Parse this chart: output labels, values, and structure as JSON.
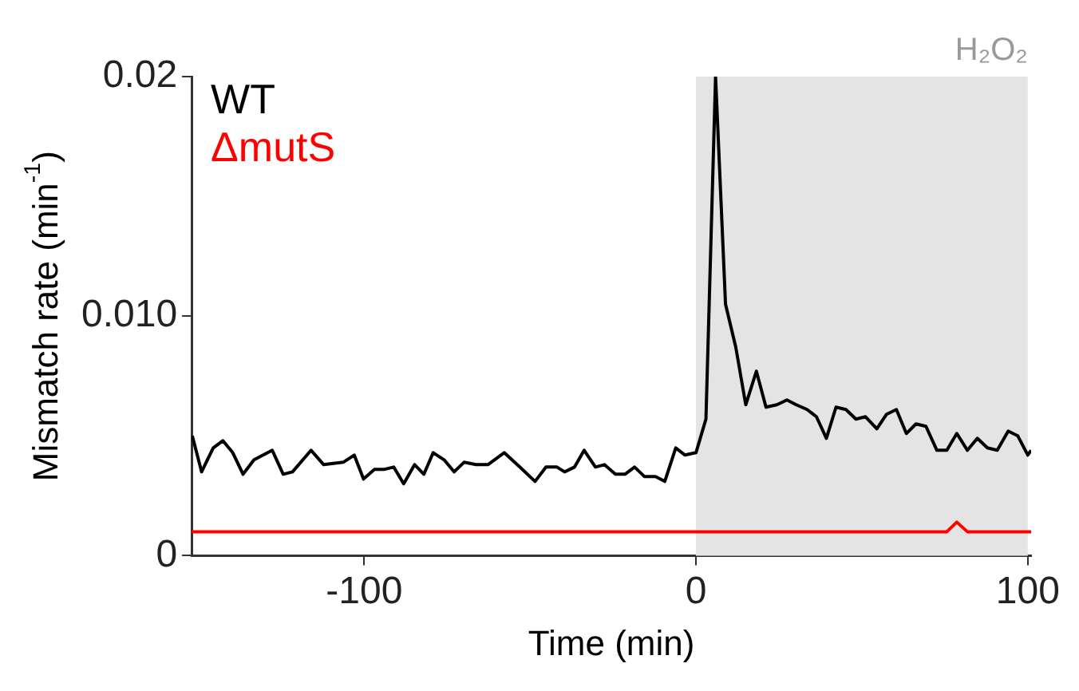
{
  "chart_data": {
    "type": "line",
    "xlabel": "Time (min)",
    "ylabel": "Mismatch rate (min$^{-1}$)",
    "xlim": [
      -152,
      101
    ],
    "xticks": [
      -100,
      0,
      100
    ],
    "ylim": [
      0,
      0.02
    ],
    "yticks": [
      {
        "value": 0,
        "label": "0"
      },
      {
        "value": 0.01,
        "label": "0.010"
      },
      {
        "value": 0.02,
        "label": "0.02"
      }
    ],
    "grid": false,
    "legend": "top left",
    "marker": "none",
    "line_style": "solid",
    "bands": [
      {
        "axis": "x",
        "from": 0,
        "to": 100,
        "label": "H₂O₂",
        "color": "#e4e4e4"
      }
    ],
    "series": [
      {
        "name": "WT",
        "color": "#000000",
        "x": [
          -151.8,
          -149,
          -145.5,
          -142.6,
          -139.6,
          -136.5,
          -133.2,
          -127.7,
          -124.4,
          -121.6,
          -116,
          -112.2,
          -106.3,
          -103,
          -100.2,
          -96.9,
          -94.1,
          -91.1,
          -88.1,
          -84.8,
          -82,
          -79.2,
          -75.9,
          -72.9,
          -69.9,
          -66.3,
          -62.7,
          -57.8,
          -53.1,
          -48.5,
          -45.2,
          -41.9,
          -39.6,
          -36.6,
          -33.7,
          -30.3,
          -27.6,
          -24.3,
          -21.4,
          -18.5,
          -15.5,
          -12.2,
          -9.4,
          -6.1,
          -3.3,
          0,
          3,
          5.9,
          8.9,
          12,
          15,
          18.2,
          21.1,
          24.4,
          27.4,
          30.2,
          33.5,
          36.3,
          39.3,
          42.2,
          45.2,
          48.2,
          51.1,
          54.5,
          57.4,
          60.4,
          63.4,
          66.3,
          69.3,
          72.6,
          75.6,
          78.6,
          81.8,
          84.8,
          87.8,
          90.8,
          94.1,
          97,
          100,
          101
        ],
        "values": [
          0.005,
          0.0035,
          0.0045,
          0.0048,
          0.0043,
          0.0034,
          0.004,
          0.0044,
          0.0034,
          0.0035,
          0.0044,
          0.0038,
          0.0039,
          0.0042,
          0.0032,
          0.0036,
          0.0036,
          0.0037,
          0.003,
          0.0038,
          0.0034,
          0.0043,
          0.004,
          0.0035,
          0.0039,
          0.0038,
          0.0038,
          0.0043,
          0.0037,
          0.0031,
          0.0037,
          0.0037,
          0.0035,
          0.0037,
          0.0044,
          0.0037,
          0.0038,
          0.0034,
          0.0034,
          0.0037,
          0.0033,
          0.0033,
          0.0031,
          0.0045,
          0.0042,
          0.0043,
          0.0057,
          0.02,
          0.0105,
          0.0087,
          0.0063,
          0.0077,
          0.0062,
          0.0063,
          0.0065,
          0.0063,
          0.0061,
          0.0058,
          0.0049,
          0.0062,
          0.0061,
          0.0057,
          0.0058,
          0.0053,
          0.0059,
          0.0061,
          0.0051,
          0.0055,
          0.0054,
          0.0044,
          0.0044,
          0.0051,
          0.0044,
          0.0049,
          0.0045,
          0.0044,
          0.0052,
          0.005,
          0.0042,
          0.0044
        ]
      },
      {
        "name": "ΔmutS",
        "color": "#ff0000",
        "x": [
          -152,
          75.6,
          78.6,
          81.8,
          101
        ],
        "values": [
          0.001,
          0.001,
          0.0014,
          0.001,
          0.001
        ]
      }
    ]
  }
}
